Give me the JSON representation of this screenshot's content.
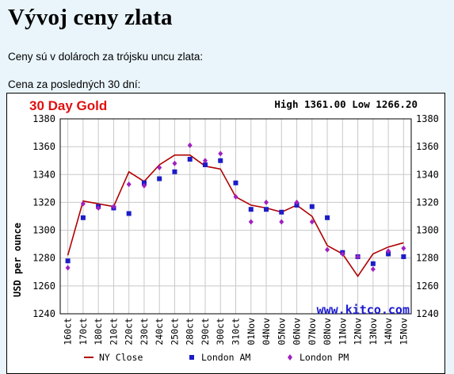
{
  "page": {
    "title": "Vývoj ceny zlata",
    "intro": "Ceny sú v dolároch za trójsku uncu zlata:",
    "period_label": "Cena za posledných 30 dní:"
  },
  "chart_data": {
    "type": "line",
    "title": "30 Day Gold",
    "high_low_text": "High 1361.00 Low 1266.20",
    "ylabel": "USD per ounce",
    "xlabel": "",
    "watermark": "www.kitco.com",
    "ylim": [
      1240,
      1380
    ],
    "yticks": [
      "1380",
      "1360",
      "1340",
      "1320",
      "1300",
      "1280",
      "1260",
      "1240"
    ],
    "categories": [
      "160ct",
      "170ct",
      "180ct",
      "210ct",
      "220ct",
      "230ct",
      "240ct",
      "250ct",
      "280ct",
      "290ct",
      "300ct",
      "310ct",
      "01Nov",
      "04Nov",
      "05Nov",
      "06Nov",
      "07Nov",
      "08Nov",
      "11Nov",
      "12Nov",
      "13Nov",
      "14Nov",
      "15Nov"
    ],
    "grid": true,
    "legend_position": "bottom",
    "series": [
      {
        "name": "NY Close",
        "marker": "line",
        "color": "#b00000",
        "values": [
          1282,
          1321,
          1319,
          1317,
          1342,
          1335,
          1347,
          1354,
          1354,
          1346,
          1344,
          1324,
          1318,
          1316,
          1313,
          1318,
          1310,
          1289,
          1283,
          1267,
          1283,
          1288,
          1291
        ]
      },
      {
        "name": "London AM",
        "marker": "square",
        "color": "#1c1cc8",
        "values": [
          1278,
          1309,
          1317,
          1316,
          1312,
          1334,
          1337,
          1342,
          1351,
          1347,
          1350,
          1334,
          1315,
          1315,
          1313,
          1318,
          1317,
          1309,
          1284,
          1281,
          1276,
          1283,
          1281
        ]
      },
      {
        "name": "London PM",
        "marker": "diamond",
        "color": "#a020c0",
        "values": [
          1273,
          1319,
          1316,
          1317,
          1333,
          1332,
          1345,
          1348,
          1361,
          1350,
          1355,
          1324,
          1306,
          1320,
          1306,
          1320,
          1306,
          1286,
          1283,
          1281,
          1272,
          1285,
          1287
        ]
      }
    ]
  }
}
